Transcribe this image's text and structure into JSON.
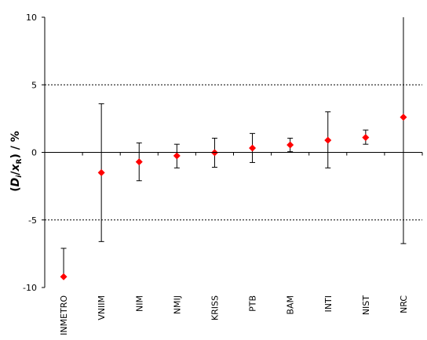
{
  "chart_data": {
    "type": "scatter",
    "title": "",
    "xlabel": "",
    "ylabel": {
      "open_paren": "(",
      "d_symbol": "D",
      "d_subscript": "i",
      "slash": "/",
      "x_symbol": "x",
      "x_subscript": "R",
      "close_paren": ")",
      "unit": " / %"
    },
    "ylim": [
      -10,
      10
    ],
    "yticks": [
      {
        "value": 10,
        "label": "10"
      },
      {
        "value": 5,
        "label": "5"
      },
      {
        "value": 0,
        "label": "0"
      },
      {
        "value": -5,
        "label": "-5"
      },
      {
        "value": -10,
        "label": "-10"
      }
    ],
    "reference_lines": [
      5,
      -5
    ],
    "grid": false,
    "legend": "none",
    "marker_color": "#ff0000",
    "errorbar_color": "#000000",
    "categories": [
      "INMETRO",
      "VNIIM",
      "NIM",
      "NMIJ",
      "KRISS",
      "PTB",
      "BAM",
      "INTI",
      "NIST",
      "NRC"
    ],
    "values": [
      -9.2,
      -1.5,
      -0.7,
      -0.25,
      -0.02,
      0.32,
      0.55,
      0.9,
      1.1,
      2.6
    ],
    "error_upper": [
      -7.1,
      3.6,
      0.7,
      0.6,
      1.05,
      1.4,
      1.05,
      3.0,
      1.65,
      10.0
    ],
    "error_lower": [
      -9.2,
      -6.6,
      -2.1,
      -1.15,
      -1.1,
      -0.75,
      0.05,
      -1.15,
      0.6,
      -6.75
    ]
  }
}
